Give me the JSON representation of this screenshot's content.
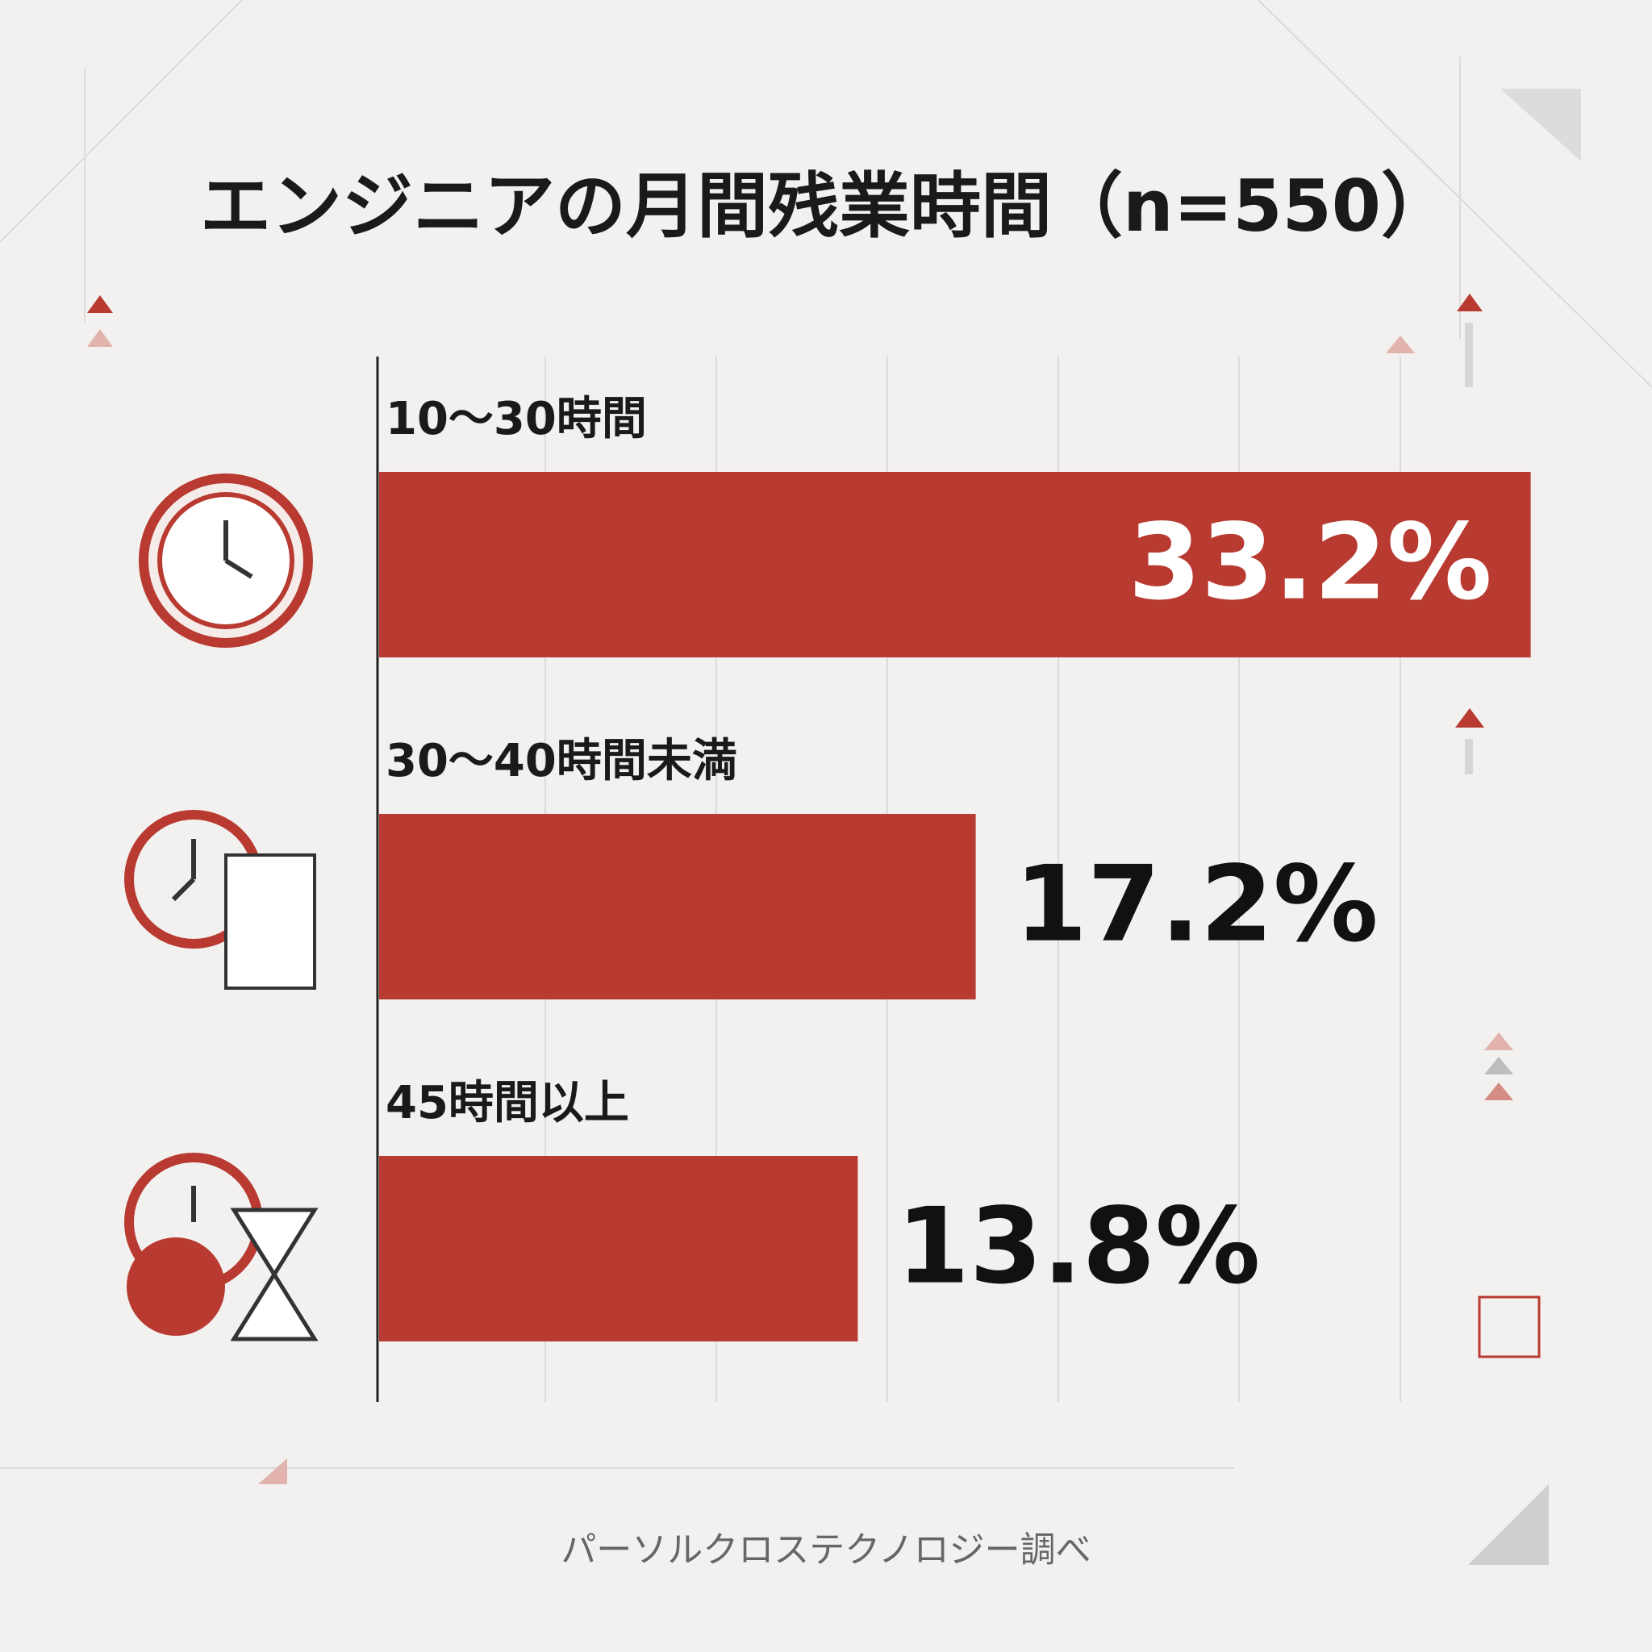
{
  "chart_data": {
    "type": "hbar",
    "title": "エンジニアの月間残業時間（n=550）",
    "categories": [
      "10〜30時間",
      "30〜40時間未満",
      "45時間以上"
    ],
    "values": [
      33.2,
      17.2,
      13.8
    ],
    "value_labels": [
      "33.2%",
      "17.2%",
      "13.8%"
    ],
    "color": "#b83a30",
    "source": "パーソルクロステクノロジー調べ"
  }
}
